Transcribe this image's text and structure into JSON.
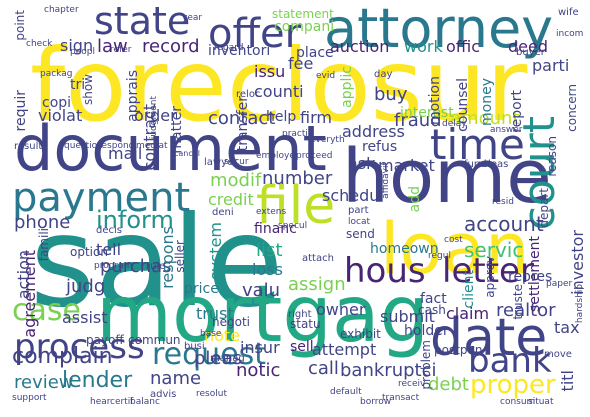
{
  "palette": [
    "#440154",
    "#482475",
    "#414487",
    "#355f8d",
    "#2a788e",
    "#21918c",
    "#22a884",
    "#44bf70",
    "#7ad151",
    "#bddf26",
    "#fde725"
  ],
  "words": [
    {
      "text": "sale",
      "color": "#21918c"
    },
    {
      "text": "foreclosur",
      "color": "#fde725"
    },
    {
      "text": "document",
      "color": "#414487"
    },
    {
      "text": "home",
      "color": "#414487"
    },
    {
      "text": "loan",
      "color": "#fde725"
    },
    {
      "text": "mortgag",
      "color": "#22a884"
    },
    {
      "text": "attorney",
      "color": "#2a788e"
    },
    {
      "text": "payment",
      "color": "#2a788e"
    },
    {
      "text": "time",
      "color": "#414487"
    },
    {
      "text": "date",
      "color": "#414487"
    },
    {
      "text": "state",
      "color": "#414487"
    },
    {
      "text": "file",
      "color": "#bddf26"
    },
    {
      "text": "court",
      "color": "#21918c"
    },
    {
      "text": "offer",
      "color": "#414487"
    },
    {
      "text": "hous",
      "color": "#482475"
    },
    {
      "text": "letter",
      "color": "#482475"
    },
    {
      "text": "bank",
      "color": "#414487"
    },
    {
      "text": "process",
      "color": "#414487"
    },
    {
      "text": "request",
      "color": "#2a788e"
    },
    {
      "text": "case",
      "color": "#7ad151"
    },
    {
      "text": "inform",
      "color": "#21918c"
    },
    {
      "text": "complain",
      "color": "#414487"
    },
    {
      "text": "lender",
      "color": "#2a788e"
    },
    {
      "text": "proper",
      "color": "#fde725"
    },
    {
      "text": "record",
      "color": "#482475"
    },
    {
      "text": "law",
      "color": "#482475"
    },
    {
      "text": "auction",
      "color": "#482475"
    },
    {
      "text": "work",
      "color": "#21918c"
    },
    {
      "text": "offic",
      "color": "#482475"
    },
    {
      "text": "deed",
      "color": "#482475"
    },
    {
      "text": "buy",
      "color": "#414487"
    },
    {
      "text": "contact",
      "color": "#414487"
    },
    {
      "text": "order",
      "color": "#414487"
    },
    {
      "text": "fraud",
      "color": "#414487"
    },
    {
      "text": "amount",
      "color": "#bddf26"
    },
    {
      "text": "account",
      "color": "#414487"
    },
    {
      "text": "servic",
      "color": "#44bf70"
    },
    {
      "text": "homeown",
      "color": "#2a788e"
    },
    {
      "text": "modif",
      "color": "#7ad151"
    },
    {
      "text": "number",
      "color": "#414487"
    },
    {
      "text": "credit",
      "color": "#7ad151"
    },
    {
      "text": "phone",
      "color": "#414487"
    },
    {
      "text": "purchas",
      "color": "#414487"
    },
    {
      "text": "agreement",
      "color": "#482475"
    },
    {
      "text": "judg",
      "color": "#414487"
    },
    {
      "text": "list",
      "color": "#22a884"
    },
    {
      "text": "loss",
      "color": "#2a788e"
    },
    {
      "text": "valu",
      "color": "#414487"
    },
    {
      "text": "price",
      "color": "#2a788e"
    },
    {
      "text": "trust",
      "color": "#2a788e"
    },
    {
      "text": "assign",
      "color": "#7ad151"
    },
    {
      "text": "financ",
      "color": "#482475"
    },
    {
      "text": "system",
      "color": "#21918c"
    },
    {
      "text": "respons",
      "color": "#2a788e"
    },
    {
      "text": "realtor",
      "color": "#414487"
    },
    {
      "text": "investor",
      "color": "#414487"
    },
    {
      "text": "tax",
      "color": "#414487"
    },
    {
      "text": "claim",
      "color": "#482475"
    },
    {
      "text": "submit",
      "color": "#414487"
    },
    {
      "text": "owner",
      "color": "#414487"
    },
    {
      "text": "attempt",
      "color": "#414487"
    },
    {
      "text": "call",
      "color": "#414487"
    },
    {
      "text": "bankruptci",
      "color": "#414487"
    },
    {
      "text": "debt",
      "color": "#7ad151"
    },
    {
      "text": "notic",
      "color": "#482475"
    },
    {
      "text": "pleas",
      "color": "#414487"
    },
    {
      "text": "name",
      "color": "#414487"
    },
    {
      "text": "review",
      "color": "#2a788e"
    },
    {
      "text": "note",
      "color": "#fde725"
    },
    {
      "text": "sell",
      "color": "#482475"
    },
    {
      "text": "insur",
      "color": "#414487"
    },
    {
      "text": "assist",
      "color": "#414487"
    },
    {
      "text": "action",
      "color": "#414487"
    },
    {
      "text": "tell",
      "color": "#414487"
    },
    {
      "text": "titl",
      "color": "#414487"
    },
    {
      "text": "settlement",
      "color": "#482475"
    },
    {
      "text": "counti",
      "color": "#414487"
    },
    {
      "text": "issu",
      "color": "#482475"
    },
    {
      "text": "fee",
      "color": "#414487"
    },
    {
      "text": "inventori",
      "color": "#414487"
    },
    {
      "text": "place",
      "color": "#414487"
    },
    {
      "text": "sign",
      "color": "#414487"
    },
    {
      "text": "compani",
      "color": "#7ad151"
    },
    {
      "text": "statement",
      "color": "#7ad151"
    },
    {
      "text": "parti",
      "color": "#414487"
    },
    {
      "text": "counsel",
      "color": "#414487"
    },
    {
      "text": "money",
      "color": "#2a788e"
    },
    {
      "text": "report",
      "color": "#414487"
    },
    {
      "text": "interest",
      "color": "#7ad151"
    },
    {
      "text": "address",
      "color": "#414487"
    },
    {
      "text": "refus",
      "color": "#414487"
    },
    {
      "text": "ask",
      "color": "#414487"
    },
    {
      "text": "market",
      "color": "#414487"
    },
    {
      "text": "schedul",
      "color": "#414487"
    },
    {
      "text": "help",
      "color": "#414487"
    },
    {
      "text": "firm",
      "color": "#414487"
    },
    {
      "text": "mail",
      "color": "#414487"
    },
    {
      "text": "violat",
      "color": "#414487"
    },
    {
      "text": "copi",
      "color": "#414487"
    },
    {
      "text": "requir",
      "color": "#414487"
    },
    {
      "text": "apprais",
      "color": "#414487"
    },
    {
      "text": "contract",
      "color": "#414487"
    },
    {
      "text": "matter",
      "color": "#414487"
    },
    {
      "text": "transfer",
      "color": "#414487"
    },
    {
      "text": "applic",
      "color": "#7ad151"
    },
    {
      "text": "motion",
      "color": "#414487"
    },
    {
      "text": "add",
      "color": "#7ad151"
    },
    {
      "text": "fact",
      "color": "#414487"
    },
    {
      "text": "cash",
      "color": "#414487"
    },
    {
      "text": "approv",
      "color": "#414487"
    },
    {
      "text": "client",
      "color": "#21918c"
    },
    {
      "text": "repres",
      "color": "#414487"
    },
    {
      "text": "truste",
      "color": "#414487"
    },
    {
      "text": "depart",
      "color": "#414487"
    },
    {
      "text": "reason",
      "color": "#414487"
    },
    {
      "text": "concern",
      "color": "#414487"
    },
    {
      "text": "holder",
      "color": "#414487"
    },
    {
      "text": "problem",
      "color": "#414487"
    },
    {
      "text": "postpon",
      "color": "#414487"
    },
    {
      "text": "exhibit",
      "color": "#414487"
    },
    {
      "text": "payoff",
      "color": "#414487"
    },
    {
      "text": "commun",
      "color": "#414487"
    },
    {
      "text": "negoti",
      "color": "#414487"
    },
    {
      "text": "statu",
      "color": "#414487"
    },
    {
      "text": "right",
      "color": "#414487"
    },
    {
      "text": "manag",
      "color": "#414487"
    },
    {
      "text": "busi",
      "color": "#414487"
    },
    {
      "text": "send",
      "color": "#414487"
    },
    {
      "text": "part",
      "color": "#414487"
    },
    {
      "text": "locat",
      "color": "#414487"
    },
    {
      "text": "seller",
      "color": "#414487"
    },
    {
      "text": "option",
      "color": "#414487"
    },
    {
      "text": "point",
      "color": "#414487"
    },
    {
      "text": "show",
      "color": "#414487"
    },
    {
      "text": "tri",
      "color": "#414487"
    },
    {
      "text": "lawyer",
      "color": "#414487"
    },
    {
      "text": "famili",
      "color": "#414487"
    },
    {
      "text": "advis",
      "color": "#414487"
    },
    {
      "text": "hear",
      "color": "#414487"
    },
    {
      "text": "certif",
      "color": "#414487"
    },
    {
      "text": "balanc",
      "color": "#414487"
    },
    {
      "text": "resolut",
      "color": "#414487"
    },
    {
      "text": "borrow",
      "color": "#414487"
    },
    {
      "text": "receiv",
      "color": "#414487"
    },
    {
      "text": "consum",
      "color": "#414487"
    },
    {
      "text": "situat",
      "color": "#414487"
    },
    {
      "text": "move",
      "color": "#414487"
    },
    {
      "text": "paper",
      "color": "#414487"
    },
    {
      "text": "hardship",
      "color": "#414487"
    },
    {
      "text": "wife",
      "color": "#414487"
    },
    {
      "text": "incom",
      "color": "#414487"
    },
    {
      "text": "buyer",
      "color": "#414487"
    },
    {
      "text": "chapter",
      "color": "#414487"
    },
    {
      "text": "year",
      "color": "#414487"
    },
    {
      "text": "refer",
      "color": "#414487"
    },
    {
      "text": "regard",
      "color": "#414487"
    },
    {
      "text": "reloc",
      "color": "#414487"
    },
    {
      "text": "evid",
      "color": "#414487"
    },
    {
      "text": "packag",
      "color": "#414487"
    },
    {
      "text": "check",
      "color": "#414487"
    },
    {
      "text": "peopl",
      "color": "#414487"
    },
    {
      "text": "day",
      "color": "#414487"
    },
    {
      "text": "delay",
      "color": "#414487"
    },
    {
      "text": "answer",
      "color": "#414487"
    },
    {
      "text": "fund",
      "color": "#414487"
    },
    {
      "text": "releas",
      "color": "#414487"
    },
    {
      "text": "cost",
      "color": "#414487"
    },
    {
      "text": "regul",
      "color": "#414487"
    },
    {
      "text": "resid",
      "color": "#414487"
    },
    {
      "text": "decis",
      "color": "#414487"
    },
    {
      "text": "extens",
      "color": "#414487"
    },
    {
      "text": "attach",
      "color": "#414487"
    },
    {
      "text": "rule",
      "color": "#414487"
    },
    {
      "text": "result",
      "color": "#414487"
    },
    {
      "text": "question",
      "color": "#414487"
    },
    {
      "text": "respond",
      "color": "#414487"
    },
    {
      "text": "mediat",
      "color": "#414487"
    },
    {
      "text": "cancel",
      "color": "#414487"
    },
    {
      "text": "employe",
      "color": "#414487"
    },
    {
      "text": "secur",
      "color": "#414487"
    },
    {
      "text": "proceed",
      "color": "#414487"
    },
    {
      "text": "affidavit",
      "color": "#414487"
    },
    {
      "text": "practic",
      "color": "#414487"
    },
    {
      "text": "everyth",
      "color": "#414487"
    },
    {
      "text": "judgment",
      "color": "#414487"
    },
    {
      "text": "default",
      "color": "#414487"
    },
    {
      "text": "support",
      "color": "#414487"
    },
    {
      "text": "transact",
      "color": "#414487"
    },
    {
      "text": "deni",
      "color": "#414487"
    },
    {
      "text": "base",
      "color": "#414487"
    },
    {
      "text": "specul",
      "color": "#414487"
    },
    {
      "text": "program",
      "color": "#414487"
    }
  ]
}
